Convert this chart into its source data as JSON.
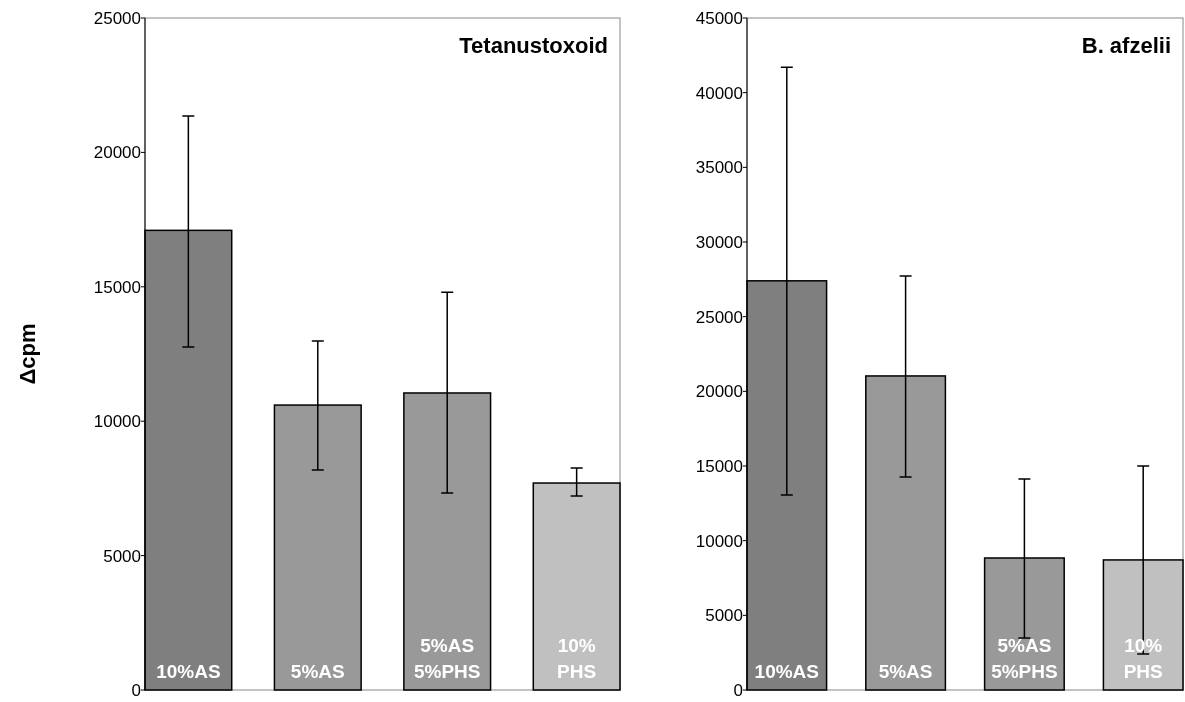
{
  "chart_data": [
    {
      "type": "bar",
      "title": "Tetanustoxoid",
      "ylabel": "Δcpm",
      "categories": [
        "10%AS",
        "5%AS",
        "5%AS\n5%PHS",
        "10%\nPHS"
      ],
      "values": [
        17100,
        10600,
        11050,
        7700
      ],
      "colors": [
        "#7f7f7f",
        "#999999",
        "#999999",
        "#c0c0c0"
      ],
      "errors": [
        [
          12760,
          21350
        ],
        [
          8180,
          12980
        ],
        [
          7330,
          14800
        ],
        [
          7220,
          8260
        ]
      ],
      "ylim": [
        0,
        25000
      ],
      "yticks": [
        0,
        5000,
        10000,
        15000,
        20000,
        25000
      ]
    },
    {
      "type": "bar",
      "title": "B. afzelii",
      "categories": [
        "10%AS",
        "5%AS",
        "5%AS\n5%PHS",
        "10%\nPHS"
      ],
      "values": [
        27400,
        21030,
        8840,
        8710
      ],
      "colors": [
        "#7f7f7f",
        "#999999",
        "#999999",
        "#c0c0c0"
      ],
      "errors": [
        [
          13060,
          41700
        ],
        [
          14270,
          27730
        ],
        [
          3480,
          14130
        ],
        [
          2410,
          15000
        ]
      ],
      "ylim": [
        0,
        45000
      ],
      "yticks": [
        0,
        5000,
        10000,
        15000,
        20000,
        25000,
        30000,
        35000,
        40000,
        45000
      ]
    }
  ]
}
